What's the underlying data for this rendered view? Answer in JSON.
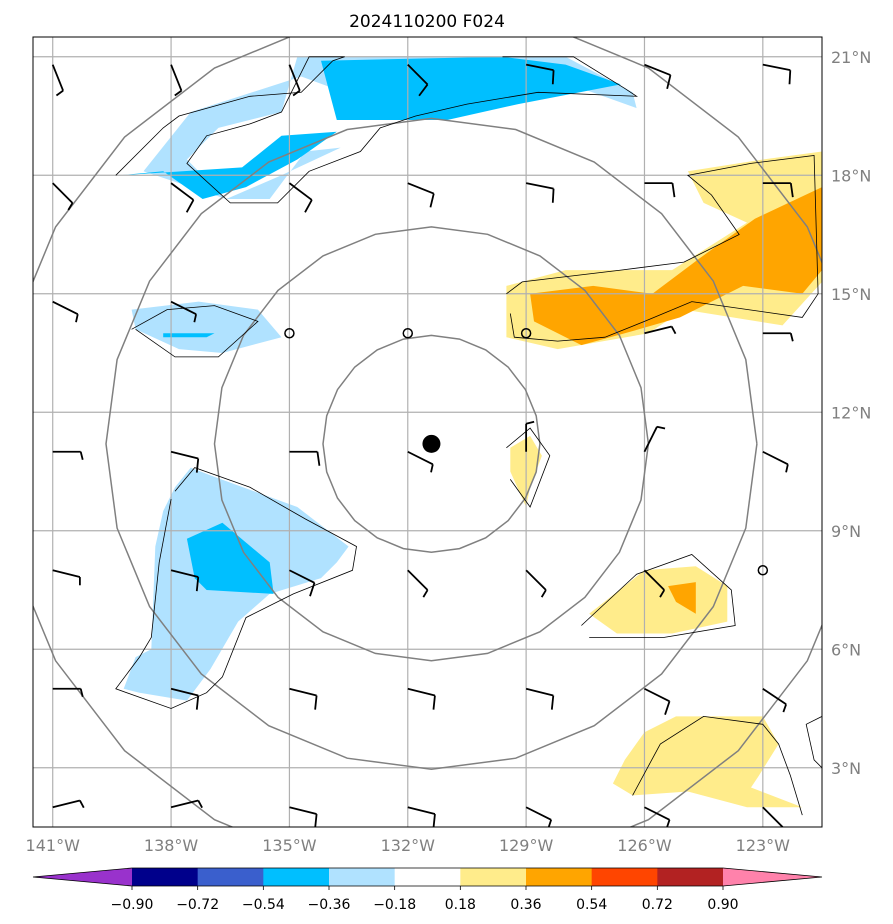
{
  "title": "2024110200 F024",
  "map": {
    "lon_range": [
      -141.5,
      -121.5
    ],
    "lat_range": [
      1.5,
      21.5
    ],
    "lon_ticks": [
      {
        "value": -141,
        "label": "141°W"
      },
      {
        "value": -138,
        "label": "138°W"
      },
      {
        "value": -135,
        "label": "135°W"
      },
      {
        "value": -132,
        "label": "132°W"
      },
      {
        "value": -129,
        "label": "129°W"
      },
      {
        "value": -126,
        "label": "126°W"
      },
      {
        "value": -123,
        "label": "123°W"
      }
    ],
    "lat_ticks": [
      {
        "value": 3,
        "label": "3°N"
      },
      {
        "value": 6,
        "label": "6°N"
      },
      {
        "value": 9,
        "label": "9°N"
      },
      {
        "value": 12,
        "label": "12°N"
      },
      {
        "value": 15,
        "label": "15°N"
      },
      {
        "value": 18,
        "label": "18°N"
      },
      {
        "value": 21,
        "label": "21°N"
      }
    ],
    "grid": true,
    "storm_center": {
      "lon": -131.4,
      "lat": 11.2
    },
    "range_rings_deg": [
      2.75,
      5.5,
      8.25,
      11
    ],
    "colors": {
      "grid": "#b0b0b0",
      "ring": "#808080",
      "storm": "#000000",
      "contour": "#000000"
    }
  },
  "colorbar": {
    "levels": [
      "-0.90",
      "-0.72",
      "-0.54",
      "-0.36",
      "-0.18",
      "0.18",
      "0.36",
      "0.54",
      "0.72",
      "0.90"
    ],
    "colors": [
      "#9932cc",
      "#00008b",
      "#3a5fcd",
      "#00bfff",
      "#b0e2ff",
      "#ffffff",
      "#ffec8b",
      "#ffa500",
      "#ff4500",
      "#b22222",
      "#ff82ab"
    ],
    "extend": "both"
  },
  "shading": [
    {
      "bin": "-0.36 to -0.18",
      "color": "#b0e2ff",
      "points": [
        [
          -138.7,
          18.1
        ],
        [
          -137.5,
          19.6
        ],
        [
          -134.7,
          20.5
        ],
        [
          -132.8,
          19.8
        ],
        [
          -130.2,
          20.3
        ],
        [
          -127.6,
          20.2
        ],
        [
          -126.2,
          19.7
        ],
        [
          -126.3,
          20.1
        ],
        [
          -128.0,
          21.0
        ],
        [
          -134.8,
          21.0
        ],
        [
          -135.2,
          19.6
        ],
        [
          -136.8,
          19.2
        ],
        [
          -137.6,
          18.4
        ],
        [
          -136.6,
          17.4
        ],
        [
          -135.5,
          17.4
        ],
        [
          -134.6,
          18.6
        ],
        [
          -133.7,
          18.7
        ],
        [
          -135.2,
          18.0
        ],
        [
          -136.6,
          17.4
        ]
      ]
    },
    {
      "bin": "-0.54 to -0.36",
      "color": "#00bfff",
      "points": [
        [
          -134.2,
          20.9
        ],
        [
          -133.8,
          19.4
        ],
        [
          -131.0,
          19.4
        ],
        [
          -129.2,
          19.8
        ],
        [
          -126.6,
          20.3
        ],
        [
          -128.0,
          20.8
        ],
        [
          -129.6,
          21.0
        ]
      ]
    },
    {
      "bin": "-0.54 to -0.36",
      "color": "#00bfff",
      "points": [
        [
          -139.3,
          18.0
        ],
        [
          -136.2,
          18.2
        ],
        [
          -135.2,
          19.0
        ],
        [
          -133.8,
          19.1
        ],
        [
          -134.8,
          18.4
        ],
        [
          -136.1,
          17.7
        ],
        [
          -137.2,
          17.4
        ],
        [
          -138.2,
          18.1
        ]
      ]
    },
    {
      "bin": "-0.36 to -0.18",
      "color": "#b0e2ff",
      "points": [
        [
          -139.0,
          14.6
        ],
        [
          -137.3,
          14.8
        ],
        [
          -135.8,
          14.6
        ],
        [
          -135.2,
          13.9
        ],
        [
          -136.7,
          13.5
        ],
        [
          -137.8,
          13.6
        ],
        [
          -138.9,
          14.1
        ]
      ]
    },
    {
      "bin": "-0.54 to -0.36",
      "color": "#00bfff",
      "points": [
        [
          -138.2,
          14.0
        ],
        [
          -136.9,
          14.0
        ],
        [
          -137.1,
          13.9
        ],
        [
          -138.2,
          13.9
        ]
      ]
    },
    {
      "bin": "-0.36 to -0.18",
      "color": "#b0e2ff",
      "points": [
        [
          -137.9,
          10.1
        ],
        [
          -137.5,
          10.6
        ],
        [
          -137.0,
          10.4
        ],
        [
          -134.8,
          9.6
        ],
        [
          -133.5,
          8.6
        ],
        [
          -133.8,
          8.2
        ],
        [
          -134.2,
          7.8
        ],
        [
          -135.5,
          7.4
        ],
        [
          -136.3,
          6.7
        ],
        [
          -137.0,
          5.5
        ],
        [
          -137.6,
          4.7
        ],
        [
          -138.8,
          4.9
        ],
        [
          -139.2,
          5.0
        ],
        [
          -138.9,
          5.8
        ],
        [
          -138.5,
          6.0
        ],
        [
          -138.4,
          8.6
        ],
        [
          -138.2,
          9.5
        ]
      ]
    },
    {
      "bin": "-0.54 to -0.36",
      "color": "#00bfff",
      "points": [
        [
          -137.6,
          8.8
        ],
        [
          -136.7,
          9.2
        ],
        [
          -135.5,
          8.2
        ],
        [
          -135.4,
          7.4
        ],
        [
          -137.1,
          7.5
        ],
        [
          -137.4,
          7.8
        ]
      ]
    },
    {
      "bin": "0.18 to 0.36",
      "color": "#ffec8b",
      "points": [
        [
          -129.5,
          15.2
        ],
        [
          -128.0,
          15.6
        ],
        [
          -125.3,
          15.6
        ],
        [
          -123.4,
          16.8
        ],
        [
          -124.5,
          17.3
        ],
        [
          -124.9,
          18.1
        ],
        [
          -123.0,
          18.4
        ],
        [
          -121.5,
          18.6
        ],
        [
          -121.5,
          15.3
        ],
        [
          -122.5,
          14.2
        ],
        [
          -125.0,
          14.6
        ],
        [
          -125.9,
          14.0
        ],
        [
          -128.2,
          13.6
        ],
        [
          -129.5,
          13.9
        ]
      ]
    },
    {
      "bin": "0.36 to 0.54",
      "color": "#ffa500",
      "points": [
        [
          -128.9,
          15.0
        ],
        [
          -127.3,
          15.2
        ],
        [
          -125.8,
          15.0
        ],
        [
          -124.6,
          15.9
        ],
        [
          -123.2,
          16.9
        ],
        [
          -121.5,
          17.7
        ],
        [
          -121.5,
          15.6
        ],
        [
          -122.0,
          15.0
        ],
        [
          -123.5,
          15.2
        ],
        [
          -125.1,
          14.4
        ],
        [
          -126.5,
          14.0
        ],
        [
          -127.6,
          13.7
        ],
        [
          -128.8,
          14.3
        ]
      ]
    },
    {
      "bin": "0.18 to 0.36",
      "color": "#ffec8b",
      "points": [
        [
          -129.4,
          11.1
        ],
        [
          -128.9,
          11.4
        ],
        [
          -128.6,
          10.9
        ],
        [
          -128.9,
          10.1
        ],
        [
          -129.0,
          9.6
        ],
        [
          -129.4,
          10.5
        ]
      ]
    },
    {
      "bin": "0.18 to 0.36",
      "color": "#ffec8b",
      "points": [
        [
          -126.0,
          8.0
        ],
        [
          -124.7,
          8.1
        ],
        [
          -123.9,
          7.6
        ],
        [
          -123.9,
          6.7
        ],
        [
          -125.3,
          6.4
        ],
        [
          -126.7,
          6.4
        ],
        [
          -127.4,
          6.9
        ]
      ]
    },
    {
      "bin": "0.36 to 0.54",
      "color": "#ffa500",
      "points": [
        [
          -125.4,
          7.6
        ],
        [
          -124.7,
          7.7
        ],
        [
          -124.7,
          6.9
        ],
        [
          -125.2,
          7.2
        ]
      ]
    },
    {
      "bin": "0.18 to 0.36",
      "color": "#ffec8b",
      "points": [
        [
          -126.0,
          3.9
        ],
        [
          -125.2,
          4.3
        ],
        [
          -123.0,
          4.3
        ],
        [
          -122.6,
          3.6
        ],
        [
          -123.1,
          2.8
        ],
        [
          -123.3,
          2.5
        ],
        [
          -122.0,
          2.0
        ],
        [
          -123.4,
          2.0
        ],
        [
          -124.9,
          2.4
        ],
        [
          -126.3,
          2.3
        ],
        [
          -126.8,
          2.6
        ],
        [
          -126.5,
          3.2
        ]
      ]
    }
  ],
  "contours": [
    [
      [
        -139.4,
        18.0
      ],
      [
        -138.2,
        19.2
      ],
      [
        -137.8,
        19.5
      ],
      [
        -136.0,
        20.0
      ],
      [
        -134.7,
        20.1
      ],
      [
        -133.9,
        20.9
      ],
      [
        -133.6,
        21.0
      ],
      [
        -134.5,
        21.0
      ],
      [
        -135.2,
        19.6
      ],
      [
        -136.0,
        19.3
      ],
      [
        -137.1,
        19.0
      ],
      [
        -137.6,
        18.3
      ],
      [
        -136.5,
        17.3
      ],
      [
        -135.3,
        17.3
      ],
      [
        -134.5,
        18.1
      ],
      [
        -133.2,
        18.6
      ],
      [
        -132.7,
        19.2
      ],
      [
        -131.8,
        19.5
      ],
      [
        -130.5,
        19.8
      ],
      [
        -128.7,
        20.1
      ],
      [
        -126.2,
        20.0
      ],
      [
        -126.5,
        20.2
      ],
      [
        -127.8,
        21.0
      ],
      [
        -129.6,
        21.0
      ]
    ],
    [
      [
        -139.0,
        14.1
      ],
      [
        -138.1,
        14.6
      ],
      [
        -136.9,
        14.7
      ],
      [
        -135.8,
        14.3
      ],
      [
        -136.8,
        13.4
      ],
      [
        -137.9,
        13.4
      ],
      [
        -138.9,
        14.1
      ]
    ],
    [
      [
        -137.9,
        10.0
      ],
      [
        -137.4,
        10.6
      ],
      [
        -136.0,
        10.1
      ],
      [
        -134.6,
        9.3
      ],
      [
        -133.3,
        8.6
      ],
      [
        -133.4,
        8.0
      ],
      [
        -134.9,
        7.4
      ],
      [
        -136.1,
        6.8
      ],
      [
        -136.7,
        5.3
      ],
      [
        -137.1,
        4.9
      ],
      [
        -138.0,
        4.5
      ],
      [
        -139.4,
        5.0
      ],
      [
        -138.8,
        5.8
      ],
      [
        -138.5,
        6.3
      ],
      [
        -138.3,
        8.2
      ],
      [
        -138.0,
        9.8
      ]
    ],
    [
      [
        -129.5,
        15.0
      ],
      [
        -129.1,
        15.3
      ],
      [
        -126.6,
        15.6
      ],
      [
        -125.0,
        15.8
      ],
      [
        -123.6,
        16.5
      ],
      [
        -124.3,
        17.5
      ],
      [
        -124.9,
        18.0
      ],
      [
        -123.3,
        18.3
      ],
      [
        -121.7,
        18.5
      ],
      [
        -121.6,
        15.0
      ],
      [
        -122.0,
        14.4
      ],
      [
        -124.8,
        14.8
      ],
      [
        -126.0,
        14.3
      ],
      [
        -127.0,
        13.9
      ],
      [
        -128.2,
        13.8
      ],
      [
        -129.3,
        13.9
      ],
      [
        -129.4,
        14.5
      ]
    ],
    [
      [
        -129.5,
        11.1
      ],
      [
        -128.9,
        11.6
      ],
      [
        -128.4,
        10.9
      ],
      [
        -128.9,
        9.6
      ],
      [
        -129.4,
        10.3
      ]
    ],
    [
      [
        -127.6,
        6.6
      ],
      [
        -126.2,
        7.9
      ],
      [
        -124.8,
        8.4
      ],
      [
        -123.8,
        7.5
      ],
      [
        -123.7,
        6.6
      ],
      [
        -125.5,
        6.3
      ],
      [
        -127.4,
        6.3
      ]
    ],
    [
      [
        -126.3,
        2.3
      ],
      [
        -125.6,
        3.6
      ],
      [
        -124.5,
        4.3
      ],
      [
        -123.0,
        4.1
      ],
      [
        -122.6,
        3.6
      ],
      [
        -122.3,
        2.8
      ],
      [
        -122.0,
        1.8
      ]
    ],
    [
      [
        -121.5,
        4.3
      ],
      [
        -121.9,
        4.1
      ],
      [
        -121.7,
        3.2
      ],
      [
        -121.5,
        3.0
      ]
    ]
  ],
  "barbs": [
    {
      "lon": -141.0,
      "lat": 20.8,
      "u": 2,
      "v": -5,
      "spd": 5
    },
    {
      "lon": -138.0,
      "lat": 20.8,
      "u": 2,
      "v": -5,
      "spd": 5
    },
    {
      "lon": -135.0,
      "lat": 20.8,
      "u": 2,
      "v": -5,
      "spd": 5
    },
    {
      "lon": -132.0,
      "lat": 20.8,
      "u": 4,
      "v": -4,
      "spd": 10
    },
    {
      "lon": -129.0,
      "lat": 20.8,
      "u": 5,
      "v": -1,
      "spd": 10
    },
    {
      "lon": -126.0,
      "lat": 20.8,
      "u": 5,
      "v": -2,
      "spd": 10
    },
    {
      "lon": -123.0,
      "lat": 20.8,
      "u": 5,
      "v": -1,
      "spd": 10
    },
    {
      "lon": -141.0,
      "lat": 17.8,
      "u": 3,
      "v": -3,
      "spd": 5
    },
    {
      "lon": -138.0,
      "lat": 17.8,
      "u": 4,
      "v": -3,
      "spd": 10
    },
    {
      "lon": -135.0,
      "lat": 17.8,
      "u": 4,
      "v": -3,
      "spd": 10
    },
    {
      "lon": -132.0,
      "lat": 17.8,
      "u": 5,
      "v": -2,
      "spd": 10
    },
    {
      "lon": -129.0,
      "lat": 17.8,
      "u": 5,
      "v": -1,
      "spd": 10
    },
    {
      "lon": -126.0,
      "lat": 17.8,
      "u": 5,
      "v": 0,
      "spd": 10
    },
    {
      "lon": -123.0,
      "lat": 17.8,
      "u": 5,
      "v": 0,
      "spd": 10
    },
    {
      "lon": -141.0,
      "lat": 14.8,
      "u": 4,
      "v": -2,
      "spd": 5
    },
    {
      "lon": -138.0,
      "lat": 14.8,
      "u": 4,
      "v": -2,
      "spd": 5
    },
    {
      "lon": -135.0,
      "lat": 14.0,
      "u": 0,
      "v": 0,
      "spd": 0
    },
    {
      "lon": -132.0,
      "lat": 14.0,
      "u": 0,
      "v": 0,
      "spd": 0
    },
    {
      "lon": -129.0,
      "lat": 14.0,
      "u": 0,
      "v": 0,
      "spd": 0
    },
    {
      "lon": -126.0,
      "lat": 14.0,
      "u": 4,
      "v": 1,
      "spd": 5
    },
    {
      "lon": -123.0,
      "lat": 14.0,
      "u": 4,
      "v": 0,
      "spd": 5
    },
    {
      "lon": -141.0,
      "lat": 11.0,
      "u": 4,
      "v": 0,
      "spd": 5
    },
    {
      "lon": -138.0,
      "lat": 11.0,
      "u": 4,
      "v": -1,
      "spd": 10
    },
    {
      "lon": -135.0,
      "lat": 11.0,
      "u": 4,
      "v": 0,
      "spd": 10
    },
    {
      "lon": -132.0,
      "lat": 11.0,
      "u": 4,
      "v": -2,
      "spd": 5
    },
    {
      "lon": -129.0,
      "lat": 11.0,
      "u": 0,
      "v": 4,
      "spd": 5
    },
    {
      "lon": -126.0,
      "lat": 11.0,
      "u": 2,
      "v": 4,
      "spd": 5
    },
    {
      "lon": -123.0,
      "lat": 11.0,
      "u": 4,
      "v": -2,
      "spd": 5
    },
    {
      "lon": -141.0,
      "lat": 8.0,
      "u": 4,
      "v": -1,
      "spd": 5
    },
    {
      "lon": -138.0,
      "lat": 8.0,
      "u": 4,
      "v": -1,
      "spd": 10
    },
    {
      "lon": -135.0,
      "lat": 8.0,
      "u": 4,
      "v": -2,
      "spd": 10
    },
    {
      "lon": -132.0,
      "lat": 8.0,
      "u": 3,
      "v": -3,
      "spd": 5
    },
    {
      "lon": -129.0,
      "lat": 8.0,
      "u": 3,
      "v": -3,
      "spd": 5
    },
    {
      "lon": -126.0,
      "lat": 8.0,
      "u": 3,
      "v": -3,
      "spd": 5
    },
    {
      "lon": -123.0,
      "lat": 8.0,
      "u": 0,
      "v": 0,
      "spd": 0
    },
    {
      "lon": -141.0,
      "lat": 5.0,
      "u": 4,
      "v": 0,
      "spd": 5
    },
    {
      "lon": -138.0,
      "lat": 5.0,
      "u": 4,
      "v": -1,
      "spd": 10
    },
    {
      "lon": -135.0,
      "lat": 5.0,
      "u": 4,
      "v": -1,
      "spd": 10
    },
    {
      "lon": -132.0,
      "lat": 5.0,
      "u": 4,
      "v": -1,
      "spd": 10
    },
    {
      "lon": -129.0,
      "lat": 5.0,
      "u": 4,
      "v": -1,
      "spd": 10
    },
    {
      "lon": -126.0,
      "lat": 5.0,
      "u": 4,
      "v": -2,
      "spd": 10
    },
    {
      "lon": -123.0,
      "lat": 5.0,
      "u": 3,
      "v": -2,
      "spd": 5
    },
    {
      "lon": -141.0,
      "lat": 2.0,
      "u": 4,
      "v": 1,
      "spd": 5
    },
    {
      "lon": -138.0,
      "lat": 2.0,
      "u": 4,
      "v": 1,
      "spd": 5
    },
    {
      "lon": -135.0,
      "lat": 2.0,
      "u": 4,
      "v": -1,
      "spd": 10
    },
    {
      "lon": -132.0,
      "lat": 2.0,
      "u": 4,
      "v": -1,
      "spd": 10
    },
    {
      "lon": -129.0,
      "lat": 2.0,
      "u": 4,
      "v": -2,
      "spd": 10
    },
    {
      "lon": -126.0,
      "lat": 2.0,
      "u": 4,
      "v": -2,
      "spd": 10
    },
    {
      "lon": -123.0,
      "lat": 2.0,
      "u": 2,
      "v": -2,
      "spd": 5
    }
  ]
}
